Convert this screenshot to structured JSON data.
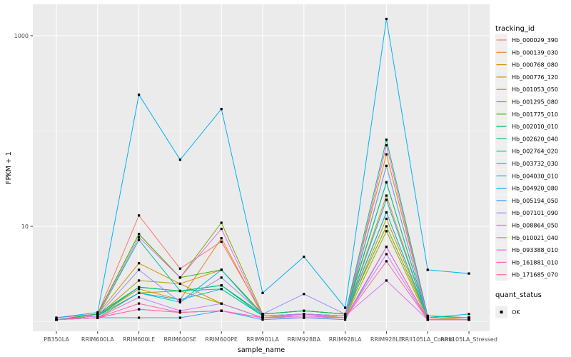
{
  "figure": {
    "x_axis_title": "sample_name",
    "y_axis_title": "FPKM + 1",
    "legend": {
      "tracking_title": "tracking_id",
      "quant_title": "quant_status",
      "quant_items": [
        {
          "label": "OK",
          "symbol": "filled-square",
          "color": "#000000"
        }
      ]
    },
    "colors": {
      "panel_bg": "#EBEBEB",
      "grid": "#FFFFFF",
      "tick_text": "#4D4D4D",
      "point": "#000000",
      "legend_key_bg": "#EFEFEF",
      "outer_bg": "#FFFFFF"
    }
  },
  "chart_data": {
    "type": "line",
    "title": "",
    "xlabel": "sample_name",
    "ylabel": "FPKM + 1",
    "y_scale": "log10",
    "y_breaks": [
      10,
      1000
    ],
    "y_break_labels": [
      "10",
      "1000"
    ],
    "y_minor_breaks": [
      1,
      100
    ],
    "ylim": [
      0.8,
      2100
    ],
    "grid": true,
    "legend_position": "right",
    "point_shape": "filled-square",
    "point_status_label": "OK",
    "categories": [
      "PB350LA",
      "RRIM600LA",
      "RRIM600LE",
      "RRIM600SE",
      "RRIM600PE",
      "RRIM901LA",
      "RRIM928BA",
      "RRIM928LA",
      "RRIM928LE",
      "RRII105LA_Control",
      "RRII105LA_Stressed"
    ],
    "series": [
      {
        "name": "Hb_000029_390",
        "color": "#F8766D",
        "values": [
          1.1,
          1.2,
          13,
          3.6,
          6.9,
          1.2,
          1.3,
          1.2,
          14,
          1.1,
          1.1
        ]
      },
      {
        "name": "Hb_000139_030",
        "color": "#EA8331",
        "values": [
          1.05,
          1.15,
          2.2,
          1.7,
          7.5,
          1.15,
          1.2,
          1.15,
          21,
          1.1,
          1.1
        ]
      },
      {
        "name": "Hb_000768_080",
        "color": "#D89000",
        "values": [
          1.05,
          1.2,
          4.1,
          2.5,
          3.5,
          1.2,
          1.3,
          1.2,
          57,
          1.15,
          1.1
        ]
      },
      {
        "name": "Hb_000776_120",
        "color": "#C09B00",
        "values": [
          1.05,
          1.15,
          2.7,
          2.5,
          1.55,
          1.1,
          1.2,
          1.1,
          12,
          1.1,
          1.05
        ]
      },
      {
        "name": "Hb_001053_050",
        "color": "#A3A500",
        "values": [
          1.05,
          1.1,
          2.0,
          2.1,
          1.55,
          1.1,
          1.15,
          1.1,
          8.9,
          1.05,
          1.05
        ]
      },
      {
        "name": "Hb_001295_080",
        "color": "#7CAE00",
        "values": [
          1.05,
          1.2,
          8.3,
          2.9,
          10.9,
          1.2,
          1.3,
          1.2,
          10,
          1.1,
          1.1
        ]
      },
      {
        "name": "Hb_001775_010",
        "color": "#39B600",
        "values": [
          1.05,
          1.2,
          8.3,
          2.9,
          3.5,
          1.2,
          1.3,
          1.2,
          29,
          1.1,
          1.1
        ]
      },
      {
        "name": "Hb_002010_010",
        "color": "#00BB4E",
        "values": [
          1.05,
          1.15,
          2.3,
          2.1,
          2.4,
          1.15,
          1.2,
          1.15,
          43,
          1.1,
          1.1
        ]
      },
      {
        "name": "Hb_002620_040",
        "color": "#00BF7D",
        "values": [
          1.05,
          1.2,
          2.3,
          2.1,
          2.4,
          1.2,
          1.3,
          1.2,
          81,
          1.15,
          1.1
        ]
      },
      {
        "name": "Hb_002764_020",
        "color": "#00C1A3",
        "values": [
          1.05,
          1.15,
          7.2,
          2.1,
          2.2,
          1.15,
          1.2,
          1.15,
          29,
          1.1,
          1.1
        ]
      },
      {
        "name": "Hb_003732_030",
        "color": "#00BFC4",
        "values": [
          1.05,
          1.15,
          2.0,
          1.7,
          2.2,
          1.15,
          1.2,
          1.15,
          19,
          1.1,
          1.1
        ]
      },
      {
        "name": "Hb_004030_010",
        "color": "#00BAE0",
        "values": [
          1.05,
          1.15,
          2.0,
          1.6,
          3.5,
          1.15,
          1.2,
          1.15,
          14,
          1.1,
          1.2
        ]
      },
      {
        "name": "Hb_004920_080",
        "color": "#00B0F6",
        "values": [
          1.1,
          1.25,
          240,
          50,
          170,
          2.0,
          4.8,
          1.4,
          1500,
          3.5,
          3.2
        ]
      },
      {
        "name": "Hb_005194_050",
        "color": "#35A2FF",
        "values": [
          1.05,
          1.1,
          1.1,
          1.1,
          1.3,
          1.05,
          1.1,
          1.05,
          6.1,
          1.05,
          1.05
        ]
      },
      {
        "name": "Hb_007101_090",
        "color": "#9590FF",
        "values": [
          1.05,
          1.15,
          3.5,
          1.6,
          2.9,
          1.2,
          1.95,
          1.2,
          43,
          1.1,
          1.1
        ]
      },
      {
        "name": "Hb_008864_050",
        "color": "#C77CFF",
        "values": [
          1.05,
          1.1,
          1.8,
          1.3,
          1.55,
          1.1,
          1.15,
          1.1,
          5.1,
          1.05,
          1.05
        ]
      },
      {
        "name": "Hb_010021_040",
        "color": "#E76BF3",
        "values": [
          1.05,
          1.15,
          7.7,
          2.9,
          9.4,
          1.15,
          1.2,
          1.15,
          2.7,
          1.05,
          1.05
        ]
      },
      {
        "name": "Hb_093388_010",
        "color": "#FA62DB",
        "values": [
          1.05,
          1.1,
          1.35,
          1.25,
          1.3,
          1.1,
          1.15,
          1.1,
          71,
          1.1,
          1.1
        ]
      },
      {
        "name": "Hb_161881_010",
        "color": "#FF61C3",
        "values": [
          1.05,
          1.1,
          1.35,
          1.25,
          1.3,
          1.1,
          1.1,
          1.1,
          6.1,
          1.05,
          1.05
        ]
      },
      {
        "name": "Hb_171685_070",
        "color": "#FF67A4",
        "values": [
          1.05,
          1.1,
          1.55,
          1.25,
          1.3,
          1.1,
          1.1,
          1.1,
          4.3,
          1.05,
          1.05
        ]
      }
    ]
  }
}
